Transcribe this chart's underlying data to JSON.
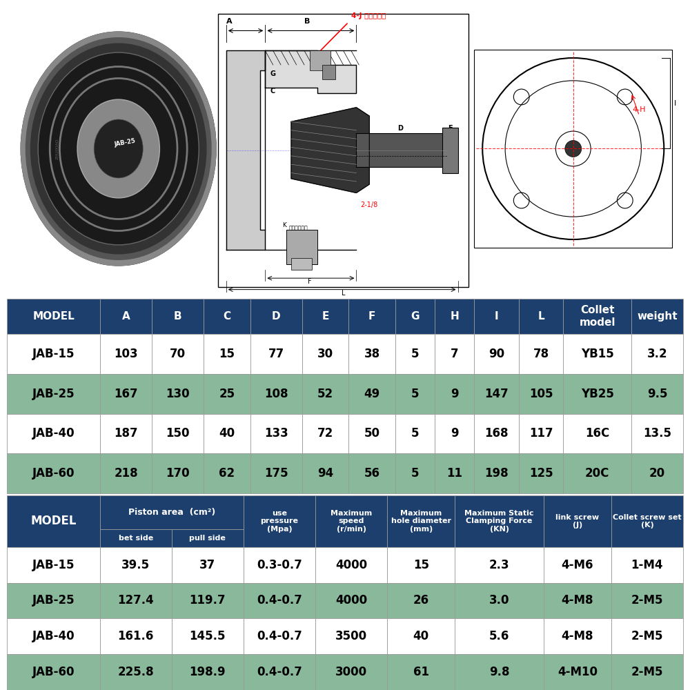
{
  "table1_headers": [
    "MODEL",
    "A",
    "B",
    "C",
    "D",
    "E",
    "F",
    "G",
    "H",
    "I",
    "L",
    "Collet\nmodel",
    "weight"
  ],
  "table1_data": [
    [
      "JAB-15",
      "103",
      "70",
      "15",
      "77",
      "30",
      "38",
      "5",
      "7",
      "90",
      "78",
      "YB15",
      "3.2"
    ],
    [
      "JAB-25",
      "167",
      "130",
      "25",
      "108",
      "52",
      "49",
      "5",
      "9",
      "147",
      "105",
      "YB25",
      "9.5"
    ],
    [
      "JAB-40",
      "187",
      "150",
      "40",
      "133",
      "72",
      "50",
      "5",
      "9",
      "168",
      "117",
      "16C",
      "13.5"
    ],
    [
      "JAB-60",
      "218",
      "170",
      "62",
      "175",
      "94",
      "56",
      "5",
      "11",
      "198",
      "125",
      "20C",
      "20"
    ]
  ],
  "table2_data": [
    [
      "JAB-15",
      "39.5",
      "37",
      "0.3-0.7",
      "4000",
      "15",
      "2.3",
      "4-M6",
      "1-M4"
    ],
    [
      "JAB-25",
      "127.4",
      "119.7",
      "0.4-0.7",
      "4000",
      "26",
      "3.0",
      "4-M8",
      "2-M5"
    ],
    [
      "JAB-40",
      "161.6",
      "145.5",
      "0.4-0.7",
      "3500",
      "40",
      "5.6",
      "4-M8",
      "2-M5"
    ],
    [
      "JAB-60",
      "225.8",
      "198.9",
      "0.4-0.7",
      "3000",
      "61",
      "9.8",
      "4-M10",
      "2-M5"
    ]
  ],
  "dark_blue": "#1c3f6e",
  "green_bg": "#8ab89a",
  "white_bg": "#ffffff",
  "light_gray": "#f5f5f5"
}
